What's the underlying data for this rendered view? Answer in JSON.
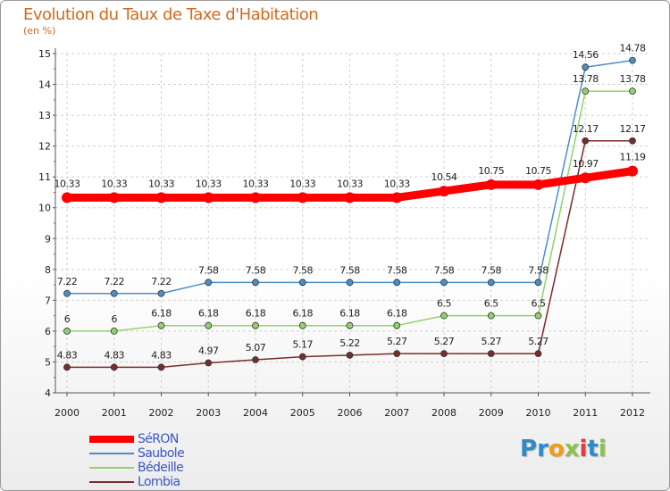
{
  "title": "Evolution du Taux de Taxe d'Habitation",
  "subtitle": "(en %)",
  "logo": {
    "text": "Proxiti",
    "letters": [
      {
        "ch": "P",
        "color": "#2e8bc9"
      },
      {
        "ch": "r",
        "color": "#2e8bc9"
      },
      {
        "ch": "o",
        "color": "#f39c12"
      },
      {
        "ch": "x",
        "color": "#8bc34a"
      },
      {
        "ch": "i",
        "color": "#e53935"
      },
      {
        "ch": "t",
        "color": "#2e8bc9"
      },
      {
        "ch": "i",
        "color": "#8bc34a"
      }
    ]
  },
  "chart_data": {
    "type": "line",
    "title": "Evolution du Taux de Taxe d'Habitation",
    "ylabel": "(en %)",
    "xlabel": "",
    "x": [
      "2000",
      "2001",
      "2002",
      "2003",
      "2004",
      "2005",
      "2006",
      "2007",
      "2008",
      "2009",
      "2010",
      "2011",
      "2012"
    ],
    "ylim": [
      4,
      15
    ],
    "yticks": [
      4,
      5,
      6,
      7,
      8,
      9,
      10,
      11,
      12,
      13,
      14,
      15
    ],
    "grid": true,
    "legend_position": "bottom-left",
    "series": [
      {
        "name": "SéRON",
        "color": "#ff0000",
        "values": [
          10.33,
          10.33,
          10.33,
          10.33,
          10.33,
          10.33,
          10.33,
          10.33,
          10.54,
          10.75,
          10.75,
          10.97,
          11.19
        ],
        "labels": [
          "10.33",
          "10.33",
          "10.33",
          "10.33",
          "10.33",
          "10.33",
          "10.33",
          "10.33",
          "10.54",
          "10.75",
          "10.75",
          "10.97",
          "11.19"
        ]
      },
      {
        "name": "Saubole",
        "color": "#4a90c8",
        "values": [
          7.22,
          7.22,
          7.22,
          7.58,
          7.58,
          7.58,
          7.58,
          7.58,
          7.58,
          7.58,
          7.58,
          14.56,
          14.78
        ],
        "labels": [
          "7.22",
          "7.22",
          "7.22",
          "7.58",
          "7.58",
          "7.58",
          "7.58",
          "7.58",
          "7.58",
          "7.58",
          "7.58",
          "14.56",
          "14.78"
        ]
      },
      {
        "name": "Bédeille",
        "color": "#8fd36b",
        "values": [
          6,
          6,
          6.18,
          6.18,
          6.18,
          6.18,
          6.18,
          6.18,
          6.5,
          6.5,
          6.5,
          13.78,
          13.78
        ],
        "labels": [
          "6",
          "6",
          "6.18",
          "6.18",
          "6.18",
          "6.18",
          "6.18",
          "6.18",
          "6.5",
          "6.5",
          "6.5",
          "13.78",
          "13.78"
        ]
      },
      {
        "name": "Lombia",
        "color": "#7b2b2b",
        "values": [
          4.83,
          4.83,
          4.83,
          4.97,
          5.07,
          5.17,
          5.22,
          5.27,
          5.27,
          5.27,
          5.27,
          12.17,
          12.17
        ],
        "labels": [
          "4.83",
          "4.83",
          "4.83",
          "4.97",
          "5.07",
          "5.17",
          "5.22",
          "5.27",
          "5.27",
          "5.27",
          "5.27",
          "12.17",
          "12.17"
        ]
      }
    ]
  }
}
